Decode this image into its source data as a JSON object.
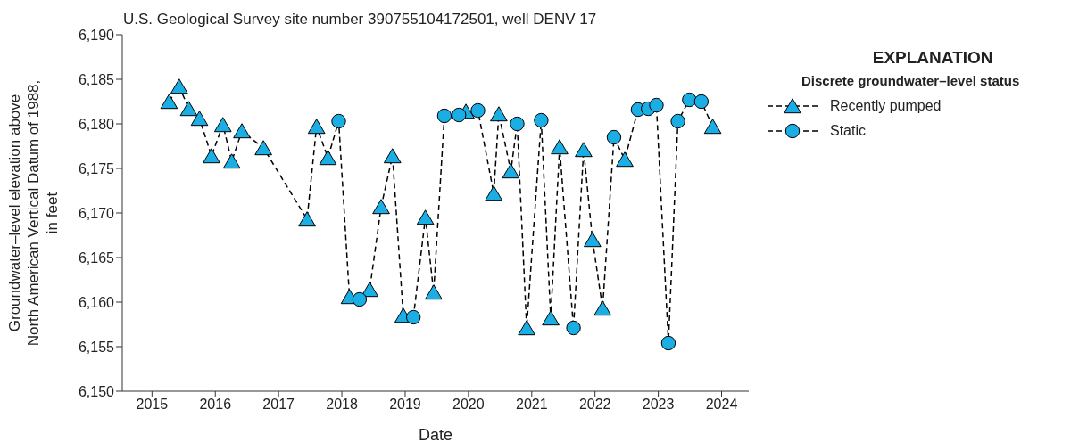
{
  "chart_data": {
    "type": "scatter",
    "title": "U.S. Geological Survey site number 390755104172501, well DENV 17",
    "xlabel": "Date",
    "ylabel": "Groundwater–level elevation above\nNorth American Vertical Datum of 1988,\nin feet",
    "legend_title": "Discrete groundwater–level status",
    "annotations": [
      "EXPLANATION"
    ],
    "legend": "top right",
    "grid": false,
    "xlim": [
      2014.53,
      2024.43
    ],
    "xticks": [
      2015,
      2016,
      2017,
      2018,
      2019,
      2020,
      2021,
      2022,
      2023,
      2024
    ],
    "ylim": [
      6150,
      6190
    ],
    "yticks": [
      {
        "value": 6150,
        "label": "6,150"
      },
      {
        "value": 6155,
        "label": "6,155"
      },
      {
        "value": 6160,
        "label": "6,160"
      },
      {
        "value": 6165,
        "label": "6,165"
      },
      {
        "value": 6170,
        "label": "6,170"
      },
      {
        "value": 6175,
        "label": "6,175"
      },
      {
        "value": 6180,
        "label": "6,180"
      },
      {
        "value": 6185,
        "label": "6,185"
      },
      {
        "value": 6190,
        "label": "6,190"
      }
    ],
    "series": [
      {
        "type": "line",
        "color": "#000000",
        "line_style": "dashed",
        "marker": "none",
        "x": [
          2015.27,
          2015.43,
          2015.58,
          2015.75,
          2015.94,
          2016.12,
          2016.26,
          2016.42,
          2016.76,
          2017.45,
          2017.6,
          2017.78,
          2017.95,
          2018.12,
          2018.28,
          2018.44,
          2018.62,
          2018.8,
          2018.97,
          2019.13,
          2019.32,
          2019.45,
          2019.62,
          2019.85,
          2019.96,
          2020.15,
          2020.4,
          2020.48,
          2020.67,
          2020.77,
          2020.92,
          2021.15,
          2021.3,
          2021.44,
          2021.66,
          2021.82,
          2021.96,
          2022.12,
          2022.3,
          2022.47,
          2022.68,
          2022.84,
          2022.97,
          2023.16,
          2023.31,
          2023.49,
          2023.68,
          2023.86
        ],
        "values": [
          6182.5,
          6184.2,
          6181.7,
          6180.6,
          6176.4,
          6179.9,
          6175.8,
          6179.2,
          6177.3,
          6169.3,
          6179.7,
          6176.2,
          6180.3,
          6160.6,
          6160.3,
          6161.4,
          6170.7,
          6176.4,
          6158.5,
          6158.3,
          6169.5,
          6161.1,
          6180.9,
          6181.0,
          6181.4,
          6181.5,
          6172.2,
          6181.1,
          6174.7,
          6180.0,
          6157.1,
          6180.4,
          6158.2,
          6177.4,
          6157.1,
          6177.1,
          6167.0,
          6159.3,
          6178.5,
          6176.0,
          6181.6,
          6181.7,
          6182.1,
          6155.4,
          6180.3,
          6182.7,
          6182.5,
          6179.7
        ]
      },
      {
        "name": "Recently pumped",
        "color": "#1aaee5",
        "marker": "triangle",
        "x": [
          2015.27,
          2015.43,
          2015.58,
          2015.75,
          2015.94,
          2016.12,
          2016.26,
          2016.42,
          2016.76,
          2017.45,
          2017.6,
          2017.78,
          2018.12,
          2018.44,
          2018.62,
          2018.8,
          2018.97,
          2019.32,
          2019.45,
          2019.96,
          2020.4,
          2020.48,
          2020.67,
          2020.92,
          2021.3,
          2021.44,
          2021.82,
          2021.96,
          2022.12,
          2022.47,
          2023.86
        ],
        "values": [
          6182.5,
          6184.2,
          6181.7,
          6180.6,
          6176.4,
          6179.9,
          6175.8,
          6179.2,
          6177.3,
          6169.3,
          6179.7,
          6176.2,
          6160.6,
          6161.4,
          6170.7,
          6176.4,
          6158.5,
          6169.5,
          6161.1,
          6181.4,
          6172.2,
          6181.1,
          6174.7,
          6157.1,
          6158.2,
          6177.4,
          6177.1,
          6167.0,
          6159.3,
          6176.0,
          6179.7
        ]
      },
      {
        "name": "Static",
        "color": "#1aaee5",
        "marker": "circle",
        "x": [
          2017.95,
          2018.28,
          2019.13,
          2019.62,
          2019.85,
          2020.15,
          2020.77,
          2021.15,
          2021.66,
          2022.3,
          2022.68,
          2022.84,
          2022.97,
          2023.16,
          2023.31,
          2023.49,
          2023.68
        ],
        "values": [
          6180.3,
          6160.3,
          6158.3,
          6180.9,
          6181.0,
          6181.5,
          6180.0,
          6180.4,
          6157.1,
          6178.5,
          6181.6,
          6181.7,
          6182.1,
          6155.4,
          6180.3,
          6182.7,
          6182.5
        ]
      }
    ]
  }
}
